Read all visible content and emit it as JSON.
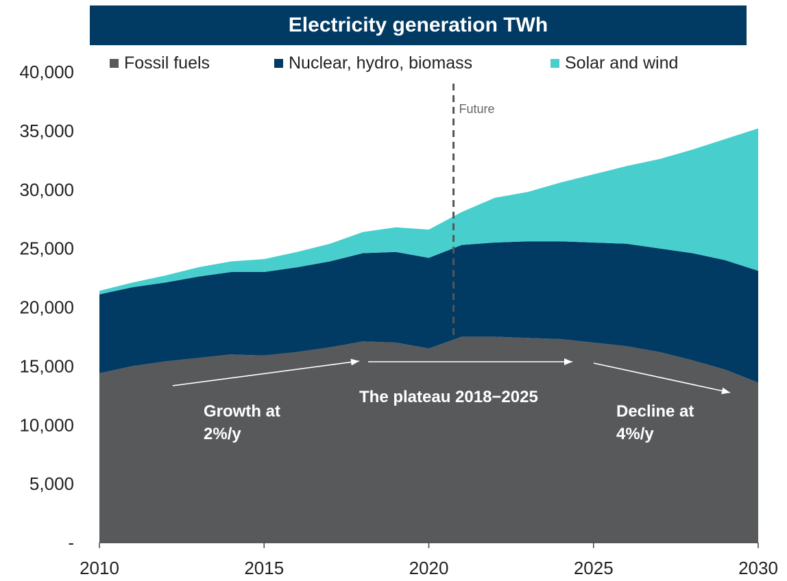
{
  "chart_data": {
    "type": "area",
    "stacked": true,
    "title": "Electricity generation TWh",
    "x": [
      2010,
      2011,
      2012,
      2013,
      2014,
      2015,
      2016,
      2017,
      2018,
      2019,
      2020,
      2021,
      2022,
      2023,
      2024,
      2025,
      2026,
      2027,
      2028,
      2029,
      2030
    ],
    "series": [
      {
        "name": "Fossil fuels",
        "color": "#58595b",
        "values": [
          14400,
          15000,
          15400,
          15700,
          16000,
          15900,
          16200,
          16600,
          17100,
          17000,
          16500,
          17500,
          17500,
          17400,
          17300,
          17000,
          16700,
          16200,
          15500,
          14700,
          13600
        ]
      },
      {
        "name": "Nuclear, hydro, biomass",
        "color": "#013a63",
        "values": [
          6700,
          6700,
          6700,
          6900,
          7000,
          7100,
          7200,
          7300,
          7500,
          7700,
          7700,
          7800,
          8000,
          8200,
          8300,
          8500,
          8700,
          8800,
          9100,
          9300,
          9500
        ]
      },
      {
        "name": "Solar and wind",
        "color": "#48cfcd",
        "values": [
          300,
          400,
          600,
          800,
          900,
          1100,
          1300,
          1500,
          1800,
          2100,
          2400,
          2800,
          3800,
          4200,
          5000,
          5800,
          6600,
          7600,
          8800,
          10300,
          12100
        ]
      }
    ],
    "x_ticks": [
      "2010",
      "2015",
      "2020",
      "2025",
      "2030"
    ],
    "y_ticks": [
      "-",
      "5,000",
      "10,000",
      "15,000",
      "20,000",
      "25,000",
      "30,000",
      "35,000",
      "40,000"
    ],
    "ylim": [
      0,
      40000
    ],
    "xlim": [
      2010,
      2030
    ],
    "grid": false,
    "legend_position": "top",
    "future_marker": {
      "x": 2020.75,
      "label": "Future"
    },
    "annotations": [
      {
        "id": "growth",
        "lines": [
          "Growth at",
          "2%/y"
        ]
      },
      {
        "id": "plateau",
        "lines": [
          "The plateau 2018−2025"
        ]
      },
      {
        "id": "decline",
        "lines": [
          "Decline at",
          "4%/y"
        ]
      }
    ]
  }
}
